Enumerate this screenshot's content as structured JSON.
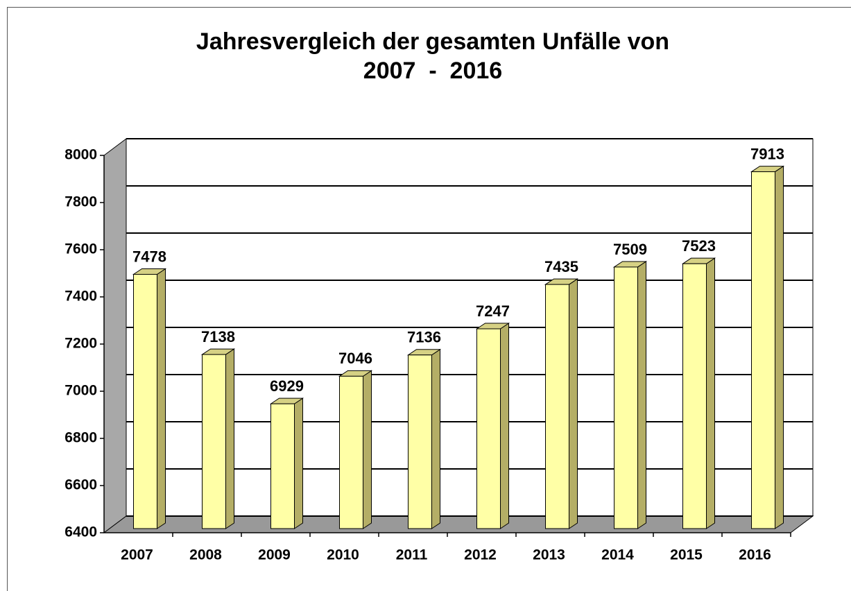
{
  "chart_data": {
    "type": "bar3d",
    "title": [
      "Jahresvergleich der gesamten Unfälle von",
      "2007  -  2016"
    ],
    "categories": [
      "2007",
      "2008",
      "2009",
      "2010",
      "2011",
      "2012",
      "2013",
      "2014",
      "2015",
      "2016"
    ],
    "values": [
      7478,
      7138,
      6929,
      7046,
      7136,
      7247,
      7435,
      7509,
      7523,
      7913
    ],
    "color": "#ffffa6",
    "ylim": [
      6400,
      8000
    ],
    "yticks": [
      6400,
      6600,
      6800,
      7000,
      7200,
      7400,
      7600,
      7800,
      8000
    ],
    "grid": true
  }
}
